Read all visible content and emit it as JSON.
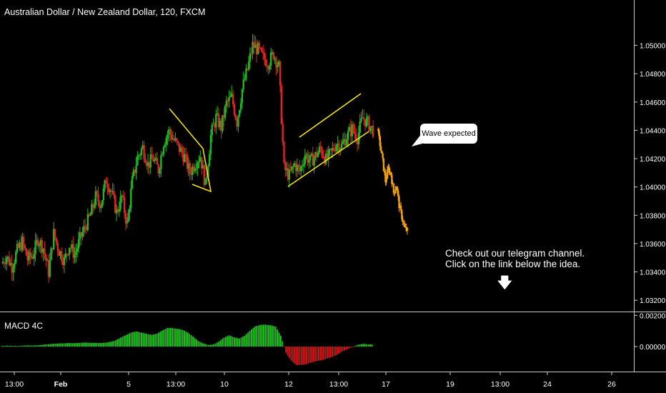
{
  "header": {
    "title": "Australian Dollar / New Zealand Dollar, 120, FXCM"
  },
  "macd": {
    "label": "MACD 4C"
  },
  "annotations": {
    "bubble": "Wave expected",
    "note_line1": "Check out our telegram channel.",
    "note_line2": "Click on the link below the idea.",
    "arrow": "🡇"
  },
  "colors": {
    "up": "#26b526",
    "down": "#e02424",
    "projection": "#f5a30a",
    "pattern": "#ffea00",
    "axis_line": "#cccccc",
    "macd_pos": "#22c922",
    "macd_neg": "#d11a1a"
  },
  "chart_data": {
    "type": "candlestick",
    "symbol": "AUDNZD",
    "timeframe": "120",
    "broker": "FXCM",
    "price_axis": {
      "ticks": [
        "1.05000",
        "1.04800",
        "1.04600",
        "1.04400",
        "1.04200",
        "1.04000",
        "1.03800",
        "1.03600",
        "1.03400",
        "1.03200"
      ],
      "range": [
        1.0312,
        1.0525
      ]
    },
    "macd_axis": {
      "ticks": [
        "0.00200",
        "0.00000"
      ],
      "range": [
        -0.0016,
        0.0022
      ]
    },
    "time_axis": {
      "ticks": [
        "13:00",
        "Feb",
        "5",
        "13:00",
        "10",
        "12",
        "13:00",
        "17",
        "19",
        "13:00",
        "24",
        "26"
      ]
    },
    "price_path": [
      1.0346,
      1.0351,
      1.0344,
      1.0355,
      1.0361,
      1.0349,
      1.0352,
      1.0363,
      1.0357,
      1.034,
      1.0367,
      1.0355,
      1.0348,
      1.0359,
      1.0352,
      1.0363,
      1.0372,
      1.038,
      1.0393,
      1.0388,
      1.0405,
      1.0397,
      1.0382,
      1.0393,
      1.0373,
      1.0404,
      1.0421,
      1.0428,
      1.0416,
      1.042,
      1.0412,
      1.0432,
      1.0439,
      1.0433,
      1.0427,
      1.0421,
      1.041,
      1.0417,
      1.0422,
      1.0401,
      1.0436,
      1.0449,
      1.0442,
      1.0459,
      1.0463,
      1.0446,
      1.0469,
      1.0483,
      1.05,
      1.0497,
      1.0491,
      1.0488,
      1.0494,
      1.0485,
      1.0413,
      1.0408,
      1.0416,
      1.0411,
      1.0423,
      1.0418,
      1.0422,
      1.0427,
      1.0419,
      1.0424,
      1.0431,
      1.0429,
      1.0436,
      1.0441,
      1.0435,
      1.0449,
      1.0445,
      1.044
    ],
    "projection_path": [
      1.0441,
      1.043,
      1.0418,
      1.0404,
      1.0413,
      1.0409,
      1.0396,
      1.0401,
      1.0387,
      1.0379,
      1.0371,
      1.0369
    ],
    "macd_values": [
      5e-05,
      6e-05,
      5e-05,
      4e-05,
      6e-05,
      8e-05,
      7e-05,
      9e-05,
      0.00012,
      0.00015,
      0.00018,
      0.0002,
      0.00021,
      0.00023,
      0.00022,
      0.00024,
      0.00026,
      0.00025,
      0.00024,
      0.00023,
      0.00025,
      0.0003,
      0.0004,
      0.00058,
      0.00074,
      0.0009,
      0.00097,
      0.0009,
      0.00082,
      0.00075,
      0.00083,
      0.00102,
      0.00119,
      0.00119,
      0.00114,
      0.00107,
      0.0009,
      0.00064,
      0.00036,
      0.0002,
      0.0001,
      0.00014,
      0.00032,
      0.00058,
      0.00072,
      0.00059,
      0.00052,
      0.0007,
      0.00101,
      0.00129,
      0.00139,
      0.00141,
      0.00137,
      0.00128,
      0.0007,
      -0.0004,
      -0.0009,
      -0.00118,
      -0.00118,
      -0.00112,
      -0.00102,
      -0.00092,
      -0.00088,
      -0.00076,
      -0.00066,
      -0.0005,
      -0.0003,
      -0.00016,
      -2e-05,
      0.00012,
      0.00018,
      0.00014
    ],
    "patterns": [
      {
        "name": "flag-1",
        "points": [
          [
            1.0445,
            0
          ],
          [
            1.0421,
            0
          ],
          [
            1.04,
            0
          ],
          [
            1.0394,
            0
          ]
        ]
      },
      {
        "name": "rising-channel",
        "upper": [
          1.0428,
          1.0454
        ],
        "lower": [
          1.0397,
          1.043
        ]
      }
    ]
  }
}
